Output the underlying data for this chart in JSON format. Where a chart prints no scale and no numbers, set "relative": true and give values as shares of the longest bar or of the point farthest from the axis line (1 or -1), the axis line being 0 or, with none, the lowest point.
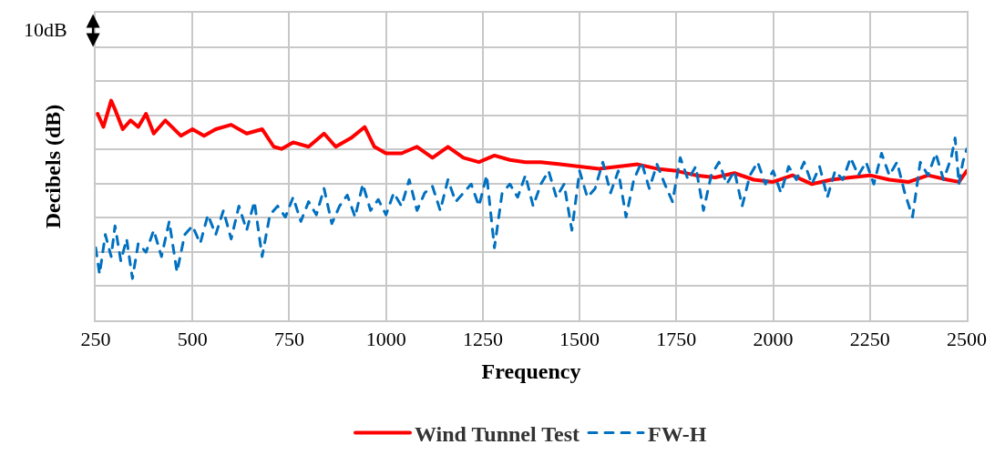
{
  "chart_data": {
    "type": "line",
    "relative": true,
    "xlabel": "Frequency",
    "ylabel": "Decibels (dB)",
    "annotations": [
      "10dB"
    ],
    "xlim": [
      250,
      2500
    ],
    "xticks": [
      250,
      500,
      750,
      1000,
      1250,
      1500,
      1750,
      2000,
      2250,
      2500
    ],
    "grid": true,
    "legend": "bottom",
    "series": [
      {
        "name": "Wind Tunnel Test",
        "color": "#ff0000",
        "line_style": "solid",
        "x": [
          255,
          270,
          290,
          300,
          320,
          340,
          360,
          380,
          400,
          430,
          470,
          500,
          530,
          560,
          600,
          640,
          680,
          710,
          730,
          760,
          800,
          840,
          870,
          910,
          945,
          970,
          1000,
          1040,
          1080,
          1120,
          1160,
          1200,
          1240,
          1280,
          1320,
          1360,
          1400,
          1450,
          1500,
          1550,
          1600,
          1650,
          1700,
          1750,
          1800,
          1850,
          1900,
          1950,
          2000,
          2050,
          2100,
          2150,
          2200,
          2250,
          2300,
          2350,
          2400,
          2450,
          2480,
          2500
        ],
        "values": [
          0.94,
          0.88,
          1.0,
          0.96,
          0.87,
          0.91,
          0.88,
          0.94,
          0.85,
          0.91,
          0.84,
          0.87,
          0.84,
          0.87,
          0.89,
          0.85,
          0.87,
          0.79,
          0.78,
          0.81,
          0.79,
          0.85,
          0.79,
          0.83,
          0.88,
          0.79,
          0.76,
          0.76,
          0.79,
          0.74,
          0.79,
          0.74,
          0.72,
          0.75,
          0.73,
          0.72,
          0.72,
          0.71,
          0.7,
          0.69,
          0.7,
          0.71,
          0.69,
          0.68,
          0.66,
          0.65,
          0.67,
          0.64,
          0.63,
          0.66,
          0.62,
          0.64,
          0.65,
          0.66,
          0.64,
          0.63,
          0.66,
          0.64,
          0.63,
          0.68
        ]
      },
      {
        "name": "FW-H",
        "color": "#0070c0",
        "line_style": "dashed",
        "x": [
          250,
          260,
          275,
          290,
          300,
          315,
          330,
          345,
          360,
          380,
          400,
          420,
          440,
          460,
          480,
          500,
          520,
          540,
          560,
          580,
          600,
          620,
          640,
          660,
          680,
          700,
          720,
          740,
          760,
          780,
          800,
          820,
          840,
          860,
          880,
          900,
          920,
          940,
          960,
          980,
          1000,
          1020,
          1040,
          1060,
          1080,
          1100,
          1120,
          1140,
          1160,
          1180,
          1200,
          1220,
          1240,
          1260,
          1280,
          1300,
          1320,
          1340,
          1360,
          1380,
          1400,
          1420,
          1440,
          1460,
          1480,
          1500,
          1520,
          1540,
          1560,
          1580,
          1600,
          1620,
          1640,
          1660,
          1680,
          1700,
          1720,
          1740,
          1760,
          1780,
          1800,
          1820,
          1840,
          1860,
          1880,
          1900,
          1920,
          1940,
          1960,
          1980,
          2000,
          2020,
          2040,
          2060,
          2080,
          2100,
          2120,
          2140,
          2160,
          2180,
          2200,
          2220,
          2240,
          2260,
          2280,
          2300,
          2320,
          2340,
          2360,
          2380,
          2400,
          2420,
          2440,
          2460,
          2470,
          2480,
          2490,
          2500
        ],
        "values": [
          0.33,
          0.21,
          0.39,
          0.29,
          0.43,
          0.27,
          0.37,
          0.19,
          0.35,
          0.31,
          0.41,
          0.29,
          0.45,
          0.22,
          0.39,
          0.43,
          0.35,
          0.48,
          0.39,
          0.5,
          0.37,
          0.52,
          0.41,
          0.54,
          0.29,
          0.48,
          0.52,
          0.47,
          0.56,
          0.45,
          0.54,
          0.48,
          0.6,
          0.44,
          0.52,
          0.57,
          0.47,
          0.62,
          0.5,
          0.55,
          0.48,
          0.58,
          0.52,
          0.64,
          0.5,
          0.58,
          0.61,
          0.5,
          0.64,
          0.54,
          0.58,
          0.62,
          0.52,
          0.66,
          0.33,
          0.58,
          0.62,
          0.56,
          0.66,
          0.52,
          0.62,
          0.68,
          0.56,
          0.62,
          0.41,
          0.68,
          0.56,
          0.6,
          0.72,
          0.58,
          0.68,
          0.47,
          0.64,
          0.72,
          0.6,
          0.71,
          0.62,
          0.54,
          0.74,
          0.64,
          0.7,
          0.5,
          0.66,
          0.72,
          0.62,
          0.68,
          0.52,
          0.66,
          0.72,
          0.62,
          0.68,
          0.58,
          0.7,
          0.64,
          0.72,
          0.62,
          0.7,
          0.56,
          0.68,
          0.64,
          0.74,
          0.66,
          0.72,
          0.62,
          0.76,
          0.66,
          0.72,
          0.58,
          0.47,
          0.72,
          0.66,
          0.76,
          0.64,
          0.74,
          0.83,
          0.62,
          0.72,
          0.78
        ]
      }
    ]
  }
}
